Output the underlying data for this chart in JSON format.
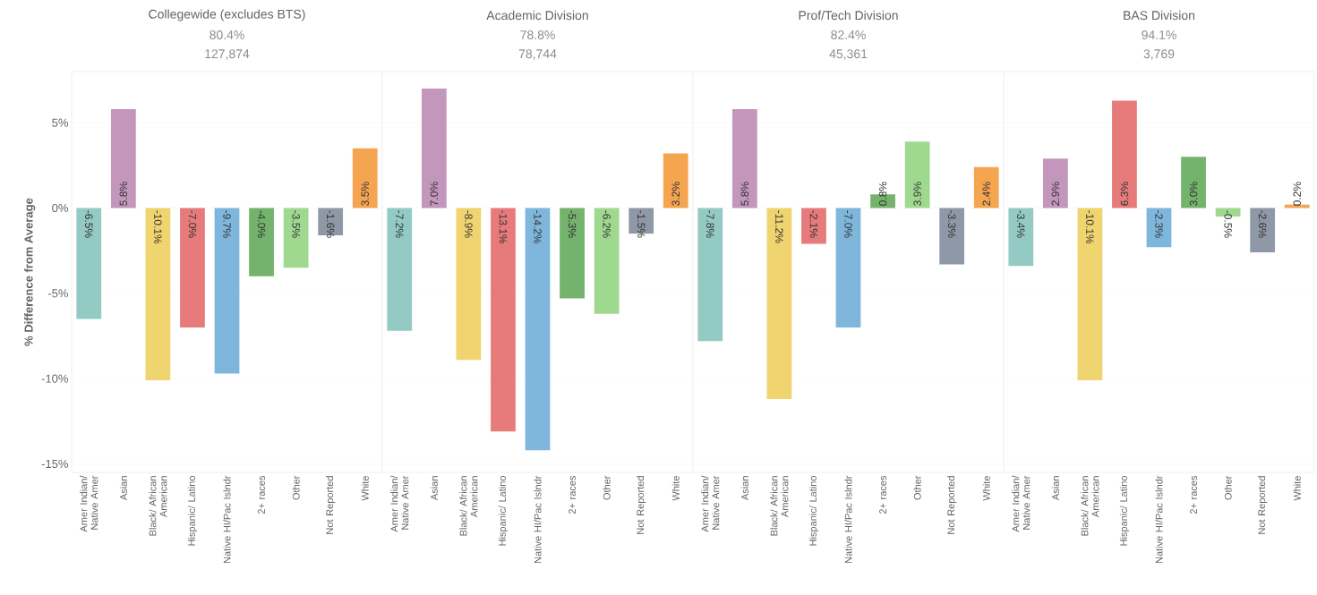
{
  "chart_data": [
    {
      "type": "bar",
      "title": "Collegewide (excludes BTS)",
      "subtitle": "80.4%",
      "annotations": [
        "127,874"
      ],
      "ylabel": "% Difference from Average",
      "categories": [
        "Amer Indian/ Native Amer",
        "Asian",
        "Black/ African American",
        "Hispanic/ Latino",
        "Native HI/Pac Islndr",
        "2+ races",
        "Other",
        "Not Reported",
        "White"
      ],
      "values": [
        -6.5,
        5.8,
        -10.1,
        -7.0,
        -9.7,
        -4.0,
        -3.5,
        -1.6,
        3.5
      ],
      "value_labels": [
        "-6.5%",
        "5.8%",
        "-10.1%",
        "-7.0%",
        "-9.7%",
        "-4.0%",
        "-3.5%",
        "-1.6%",
        "3.5%"
      ],
      "colors": [
        "#93cac3",
        "#c396bb",
        "#f0d470",
        "#e77b7b",
        "#7fb6dc",
        "#74b36b",
        "#9fd98f",
        "#8f98a6",
        "#f5a450"
      ],
      "ylim": [
        -15.5,
        8
      ],
      "yticks": [
        {
          "value": -15,
          "label": "-15%"
        },
        {
          "value": -10,
          "label": "-10%"
        },
        {
          "value": -5,
          "label": "-5%"
        },
        {
          "value": 0,
          "label": "0%"
        },
        {
          "value": 5,
          "label": "5%"
        }
      ],
      "grid": "y"
    },
    {
      "type": "bar",
      "title": "Academic Division",
      "subtitle": "78.8%",
      "annotations": [
        "78,744"
      ],
      "categories": [
        "Amer Indian/ Native Amer",
        "Asian",
        "Black/ African American",
        "Hispanic/ Latino",
        "Native HI/Pac Islndr",
        "2+ races",
        "Other",
        "Not Reported",
        "White"
      ],
      "values": [
        -7.2,
        7.0,
        -8.9,
        -13.1,
        -14.2,
        -5.3,
        -6.2,
        -1.5,
        3.2
      ],
      "value_labels": [
        "-7.2%",
        "7.0%",
        "-8.9%",
        "-13.1%",
        "-14.2%",
        "-5.3%",
        "-6.2%",
        "-1.5%",
        "3.2%"
      ],
      "colors": [
        "#93cac3",
        "#c396bb",
        "#f0d470",
        "#e77b7b",
        "#7fb6dc",
        "#74b36b",
        "#9fd98f",
        "#8f98a6",
        "#f5a450"
      ],
      "ylim": [
        -15.5,
        8
      ],
      "yticks": [
        {
          "value": -15,
          "label": null
        },
        {
          "value": -10,
          "label": null
        },
        {
          "value": -5,
          "label": null
        },
        {
          "value": 0,
          "label": null
        },
        {
          "value": 5,
          "label": null
        }
      ],
      "grid": "y",
      "tick_labels": "x"
    },
    {
      "type": "bar",
      "title": "Prof/Tech Division",
      "subtitle": "82.4%",
      "annotations": [
        "45,361"
      ],
      "categories": [
        "Amer Indian/ Native Amer",
        "Asian",
        "Black/ African American",
        "Hispanic/ Latino",
        "Native HI/Pac Islndr",
        "2+ races",
        "Other",
        "Not Reported",
        "White"
      ],
      "values": [
        -7.8,
        5.8,
        -11.2,
        -2.1,
        -7.0,
        0.8,
        3.9,
        -3.3,
        2.4
      ],
      "value_labels": [
        "-7.8%",
        "5.8%",
        "-11.2%",
        "-2.1%",
        "-7.0%",
        "0.8%",
        "3.9%",
        "-3.3%",
        "2.4%"
      ],
      "colors": [
        "#93cac3",
        "#c396bb",
        "#f0d470",
        "#e77b7b",
        "#7fb6dc",
        "#74b36b",
        "#9fd98f",
        "#8f98a6",
        "#f5a450"
      ],
      "ylim": [
        -15.5,
        8
      ],
      "yticks": [
        {
          "value": -15,
          "label": null
        },
        {
          "value": -10,
          "label": null
        },
        {
          "value": -5,
          "label": null
        },
        {
          "value": 0,
          "label": null
        },
        {
          "value": 5,
          "label": null
        }
      ],
      "grid": "y",
      "tick_labels": "x"
    },
    {
      "type": "bar",
      "title": "BAS Division",
      "subtitle": "94.1%",
      "annotations": [
        "3,769"
      ],
      "categories": [
        "Amer Indian/ Native Amer",
        "Asian",
        "Black/ African American",
        "Hispanic/ Latino",
        "Native HI/Pac Islndr",
        "2+ races",
        "Other",
        "Not Reported",
        "White"
      ],
      "values": [
        -3.4,
        2.9,
        -10.1,
        6.3,
        -2.3,
        3.0,
        -0.5,
        -2.6,
        0.2
      ],
      "value_labels": [
        "-3.4%",
        "2.9%",
        "-10.1%",
        "6.3%",
        "-2.3%",
        "3.0%",
        "-0.5%",
        "-2.6%",
        "0.2%"
      ],
      "colors": [
        "#93cac3",
        "#c396bb",
        "#f0d470",
        "#e77b7b",
        "#7fb6dc",
        "#74b36b",
        "#9fd98f",
        "#8f98a6",
        "#f5a450"
      ],
      "ylim": [
        -15.5,
        8
      ],
      "yticks": [
        {
          "value": -15,
          "label": null
        },
        {
          "value": -10,
          "label": null
        },
        {
          "value": -5,
          "label": null
        },
        {
          "value": 0,
          "label": null
        },
        {
          "value": 5,
          "label": null
        }
      ],
      "grid": "y",
      "tick_labels": "x"
    }
  ]
}
